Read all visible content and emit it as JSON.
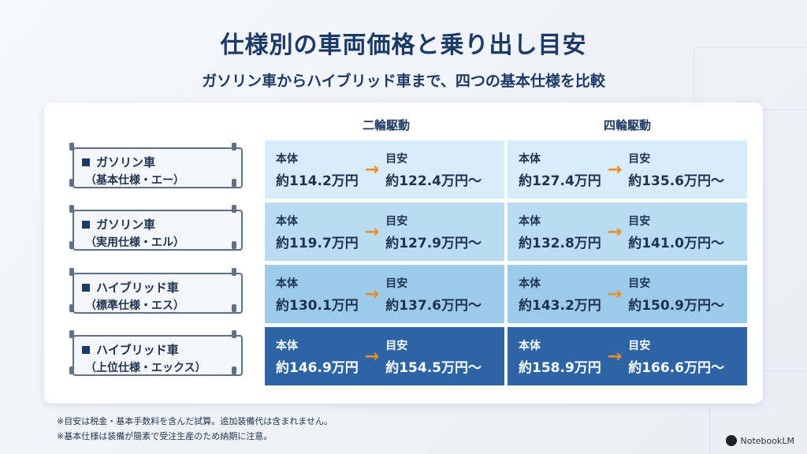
{
  "title": "仕様別の車両価格と乗り出し目安",
  "subtitle": "ガソリン車からハイブリッド車まで、四つの基本仕様を比較",
  "columns": [
    "二輪駆動",
    "四輪駆動"
  ],
  "key_base": "本体",
  "key_est": "目安",
  "rows": [
    {
      "name": "ガソリン車",
      "grade": "（基本仕様・エー）",
      "cells": [
        {
          "base": "約114.2万円",
          "est": "約122.4万円〜"
        },
        {
          "base": "約127.4万円",
          "est": "約135.6万円〜"
        }
      ]
    },
    {
      "name": "ガソリン車",
      "grade": "（実用仕様・エル）",
      "cells": [
        {
          "base": "約119.7万円",
          "est": "約127.9万円〜"
        },
        {
          "base": "約132.8万円",
          "est": "約141.0万円〜"
        }
      ]
    },
    {
      "name": "ハイブリッド車",
      "grade": "（標準仕様・エス）",
      "cells": [
        {
          "base": "約130.1万円",
          "est": "約137.6万円〜"
        },
        {
          "base": "約143.2万円",
          "est": "約150.9万円〜"
        }
      ]
    },
    {
      "name": "ハイブリッド車",
      "grade": "（上位仕様・エックス）",
      "cells": [
        {
          "base": "約146.9万円",
          "est": "約154.5万円〜"
        },
        {
          "base": "約158.9万円",
          "est": "約166.6万円〜"
        }
      ]
    }
  ],
  "row_colors": [
    "#d6ecfa",
    "#b9dcf3",
    "#9ccaeb",
    "#2c64a6"
  ],
  "row_text_colors": [
    "#1f3350",
    "#1f3350",
    "#1f3350",
    "#ffffff"
  ],
  "accent_arrow": "#f08a24",
  "notes": [
    "※目安は税金・基本手数料を含んだ試算。追加装備代は含まれません。",
    "※基本仕様は装備が簡素で受注生産のため納期に注意。"
  ],
  "brand": "NotebookLM"
}
